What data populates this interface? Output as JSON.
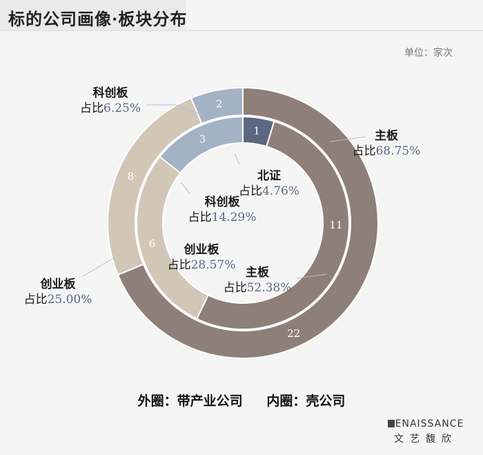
{
  "title": "标的公司画像·板块分布",
  "unit": "单位：家次",
  "footer": {
    "outer_label": "外圈：带产业公司",
    "inner_label": "内圈：壳公司"
  },
  "brand": {
    "en": "ENAISSANCE",
    "cn": "文艺馥欣"
  },
  "colors": {
    "主板": "#8e7f78",
    "北证": "#5b6680",
    "科创板": "#a3b2c4",
    "创业板": "#d2c6b6"
  },
  "chart_data": [
    {
      "type": "pie",
      "ring": "outer",
      "series_name": "外圈：带产业公司",
      "slices": [
        {
          "name": "主板",
          "value": 22,
          "pct_text": "68.75%"
        },
        {
          "name": "创业板",
          "value": 8,
          "pct_text": "25.00%"
        },
        {
          "name": "科创板",
          "value": 2,
          "pct_text": "6.25%"
        }
      ]
    },
    {
      "type": "pie",
      "ring": "inner",
      "series_name": "内圈：壳公司",
      "slices": [
        {
          "name": "北证",
          "value": 1,
          "pct_text": "4.76%"
        },
        {
          "name": "主板",
          "value": 11,
          "pct_text": "52.38%"
        },
        {
          "name": "创业板",
          "value": 6,
          "pct_text": "28.57%"
        },
        {
          "name": "科创板",
          "value": 3,
          "pct_text": "14.29%"
        }
      ]
    }
  ],
  "pct_prefix": "占比"
}
